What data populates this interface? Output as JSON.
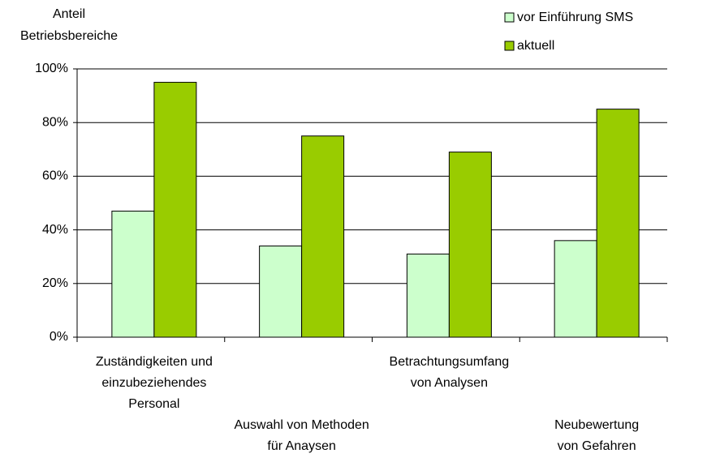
{
  "chart_data": {
    "type": "bar",
    "y_label": "Anteil\nBetriebsbereiche",
    "categories": [
      "Zuständigkeiten und\neinzubeziehendes\nPersonal",
      "Auswahl von Methoden\nfür Anaysen",
      "Betrachtungsumfang\nvon Analysen",
      "Neubewertung\nvon Gefahren"
    ],
    "series": [
      {
        "name": "vor Einführung SMS",
        "color": "#ccffcc",
        "values": [
          47,
          34,
          31,
          36
        ]
      },
      {
        "name": "aktuell",
        "color": "#99cc00",
        "values": [
          95,
          75,
          69,
          85
        ]
      }
    ],
    "ylim": [
      0,
      100
    ],
    "yticks": [
      {
        "value": 0,
        "label": "0%"
      },
      {
        "value": 20,
        "label": "20%"
      },
      {
        "value": 40,
        "label": "40%"
      },
      {
        "value": 60,
        "label": "60%"
      },
      {
        "value": 80,
        "label": "80%"
      },
      {
        "value": 100,
        "label": "100%"
      }
    ],
    "grid": true,
    "legend": "top-right"
  }
}
